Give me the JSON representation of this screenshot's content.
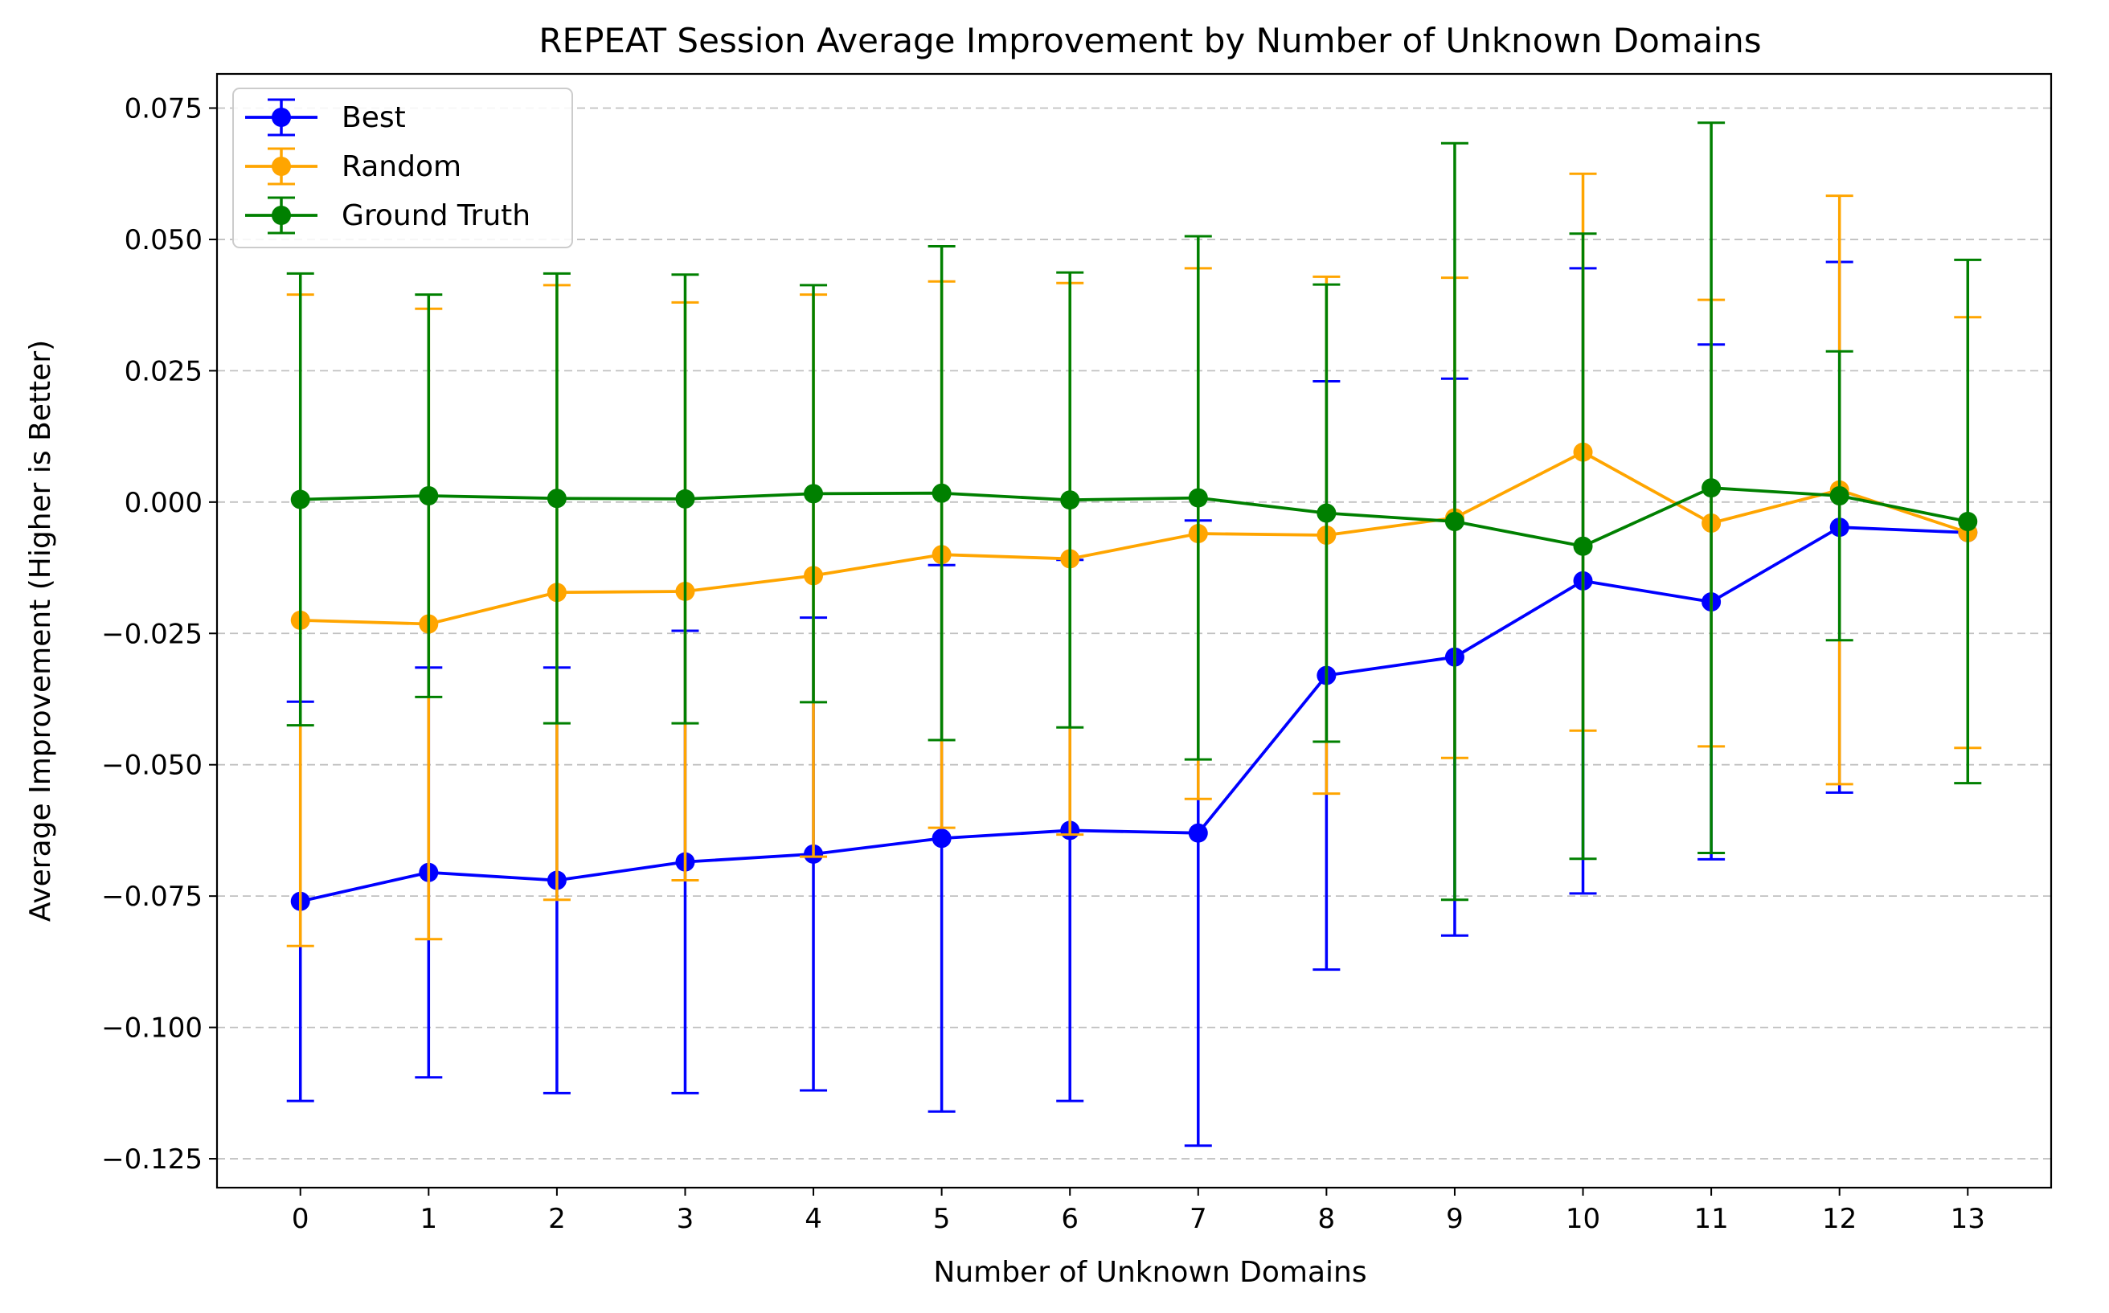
{
  "chart_data": {
    "type": "line",
    "title": "REPEAT Session Average Improvement by Number of Unknown Domains",
    "xlabel": "Number of Unknown Domains",
    "ylabel": "Average Improvement (Higher is Better)",
    "x": [
      0,
      1,
      2,
      3,
      4,
      5,
      6,
      7,
      8,
      9,
      10,
      11,
      12,
      13
    ],
    "x_tick_labels": [
      "0",
      "1",
      "2",
      "3",
      "4",
      "5",
      "6",
      "7",
      "8",
      "9",
      "10",
      "11",
      "12",
      "13"
    ],
    "xlim": [
      -0.65,
      13.65
    ],
    "ylim": [
      -0.1305,
      0.0815
    ],
    "y_ticks": [
      0.075,
      0.05,
      0.025,
      0.0,
      -0.025,
      -0.05,
      -0.075,
      -0.1,
      -0.125
    ],
    "y_tick_labels": [
      "0.075",
      "0.050",
      "0.025",
      "0.000",
      "−0.025",
      "−0.050",
      "−0.075",
      "−0.100",
      "−0.125"
    ],
    "grid": "horizontal dashed",
    "legend_position": "upper-left",
    "series": [
      {
        "name": "Best",
        "color": "#0000ff",
        "values": [
          -0.076,
          -0.0705,
          -0.072,
          -0.0685,
          -0.067,
          -0.064,
          -0.0625,
          -0.063,
          -0.033,
          -0.0295,
          -0.015,
          -0.019,
          -0.0048,
          -0.0058
        ],
        "error": [
          0.038,
          0.039,
          0.0405,
          0.044,
          0.045,
          0.052,
          0.0515,
          0.0595,
          0.056,
          0.053,
          0.0595,
          0.049,
          0.0505,
          0.0
        ]
      },
      {
        "name": "Random",
        "color": "#ffa500",
        "values": [
          -0.0225,
          -0.0232,
          -0.0172,
          -0.017,
          -0.014,
          -0.01,
          -0.0108,
          -0.006,
          -0.0063,
          -0.003,
          0.0095,
          -0.004,
          0.0023,
          -0.0058
        ],
        "error": [
          0.062,
          0.06,
          0.0585,
          0.055,
          0.0535,
          0.052,
          0.0525,
          0.0505,
          0.0492,
          0.0457,
          0.053,
          0.0425,
          0.056,
          0.041
        ]
      },
      {
        "name": "Ground Truth",
        "color": "#008000",
        "values": [
          0.0005,
          0.0012,
          0.0007,
          0.0006,
          0.0016,
          0.0017,
          0.0004,
          0.0008,
          -0.0021,
          -0.0037,
          -0.0084,
          0.0027,
          0.0012,
          -0.0037
        ],
        "error": [
          0.043,
          0.0383,
          0.0428,
          0.0427,
          0.0397,
          0.047,
          0.0433,
          0.0498,
          0.0435,
          0.072,
          0.0595,
          0.0695,
          0.0275,
          0.0498
        ]
      }
    ]
  }
}
